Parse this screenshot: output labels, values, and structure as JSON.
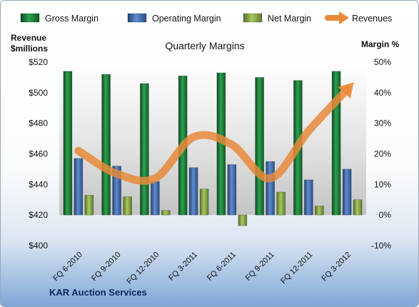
{
  "chart_data": {
    "type": "bar",
    "title": "Quarterly Margins",
    "categories": [
      "FQ 6-2010",
      "FQ 9-2010",
      "FQ 12-2010",
      "FQ 3-2011",
      "FQ 6-2011",
      "FQ 9-2011",
      "FQ 12-2011",
      "FQ 3-2012"
    ],
    "series": [
      {
        "name": "Gross Margin",
        "kind": "bar",
        "axis": "right",
        "color": "#1f8a3f",
        "values": [
          47.0,
          46.0,
          43.0,
          45.5,
          46.5,
          45.0,
          44.0,
          47.0
        ]
      },
      {
        "name": "Operating Margin",
        "kind": "bar",
        "axis": "right",
        "color": "#4a72b8",
        "values": [
          18.5,
          16.0,
          11.0,
          15.5,
          16.5,
          17.5,
          11.5,
          15.0
        ]
      },
      {
        "name": "Net Margin",
        "kind": "bar",
        "axis": "right",
        "color": "#8fb04a",
        "values": [
          6.5,
          6.0,
          1.5,
          8.5,
          -3.5,
          7.5,
          3.0,
          5.0
        ]
      },
      {
        "name": "Revenues",
        "kind": "line",
        "axis": "left",
        "color": "#e8893a",
        "values": [
          462,
          447,
          444,
          471,
          466,
          444,
          475,
          502
        ]
      }
    ],
    "ylabel_left": [
      "Revenue",
      "$millions"
    ],
    "ylabel_right": "Margin %",
    "ylim_left": [
      400,
      520
    ],
    "yticks_left": [
      "$400",
      "$420",
      "$440",
      "$460",
      "$480",
      "$500",
      "$520"
    ],
    "ylim_right": [
      -10,
      50
    ],
    "yticks_right": [
      "-10%",
      "0%",
      "10%",
      "20%",
      "30%",
      "40%",
      "50%"
    ],
    "legend": [
      "Gross Margin",
      "Operating Margin",
      "Net Margin",
      "Revenues"
    ],
    "legend_position": "top",
    "grid": false,
    "source_label": "KAR Auction Services"
  }
}
